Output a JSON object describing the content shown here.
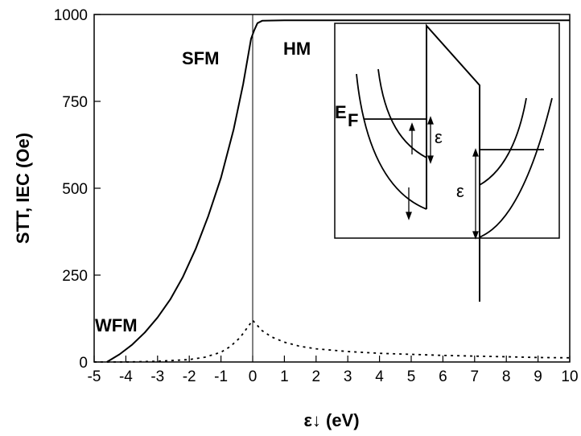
{
  "chart_data": {
    "type": "line",
    "title": "",
    "xlabel": "ε↓ (eV)",
    "ylabel": "STT, IEC (Oe)",
    "xlim": [
      -5,
      10
    ],
    "ylim": [
      0,
      1000
    ],
    "xticks": [
      -5,
      -4,
      -3,
      -2,
      -1,
      0,
      1,
      2,
      3,
      4,
      5,
      6,
      7,
      8,
      9,
      10
    ],
    "yticks": [
      0,
      250,
      500,
      750,
      1000
    ],
    "grid": false,
    "legend": "none",
    "series": [
      {
        "style": "solid",
        "x": [
          -4.6,
          -4.2,
          -3.8,
          -3.4,
          -3.0,
          -2.6,
          -2.2,
          -1.8,
          -1.4,
          -1.0,
          -0.6,
          -0.3,
          -0.05,
          0.05,
          0.15,
          0.3,
          1.0,
          3.0,
          5.0,
          7.0,
          9.0,
          10.0
        ],
        "y": [
          0,
          22,
          50,
          85,
          128,
          180,
          245,
          325,
          420,
          530,
          670,
          800,
          930,
          955,
          975,
          982,
          983,
          983,
          983,
          983,
          983,
          983
        ]
      },
      {
        "style": "dotted",
        "x": [
          -5.0,
          -4.0,
          -3.0,
          -2.0,
          -1.5,
          -1.0,
          -0.7,
          -0.4,
          -0.2,
          0.0,
          0.1,
          0.3,
          0.6,
          1.0,
          1.5,
          2.0,
          3.0,
          4.0,
          5.0,
          6.0,
          7.0,
          8.0,
          9.0,
          10.0
        ],
        "y": [
          0,
          0,
          2,
          7,
          14,
          28,
          45,
          70,
          95,
          120,
          110,
          90,
          72,
          57,
          45,
          38,
          30,
          25,
          22,
          19,
          17,
          15,
          13,
          12
        ]
      }
    ],
    "annotations": [
      "SFM",
      "HM",
      "WFM"
    ],
    "inset": {
      "labels": [
        "E",
        "F",
        "ε",
        "ε"
      ]
    }
  }
}
